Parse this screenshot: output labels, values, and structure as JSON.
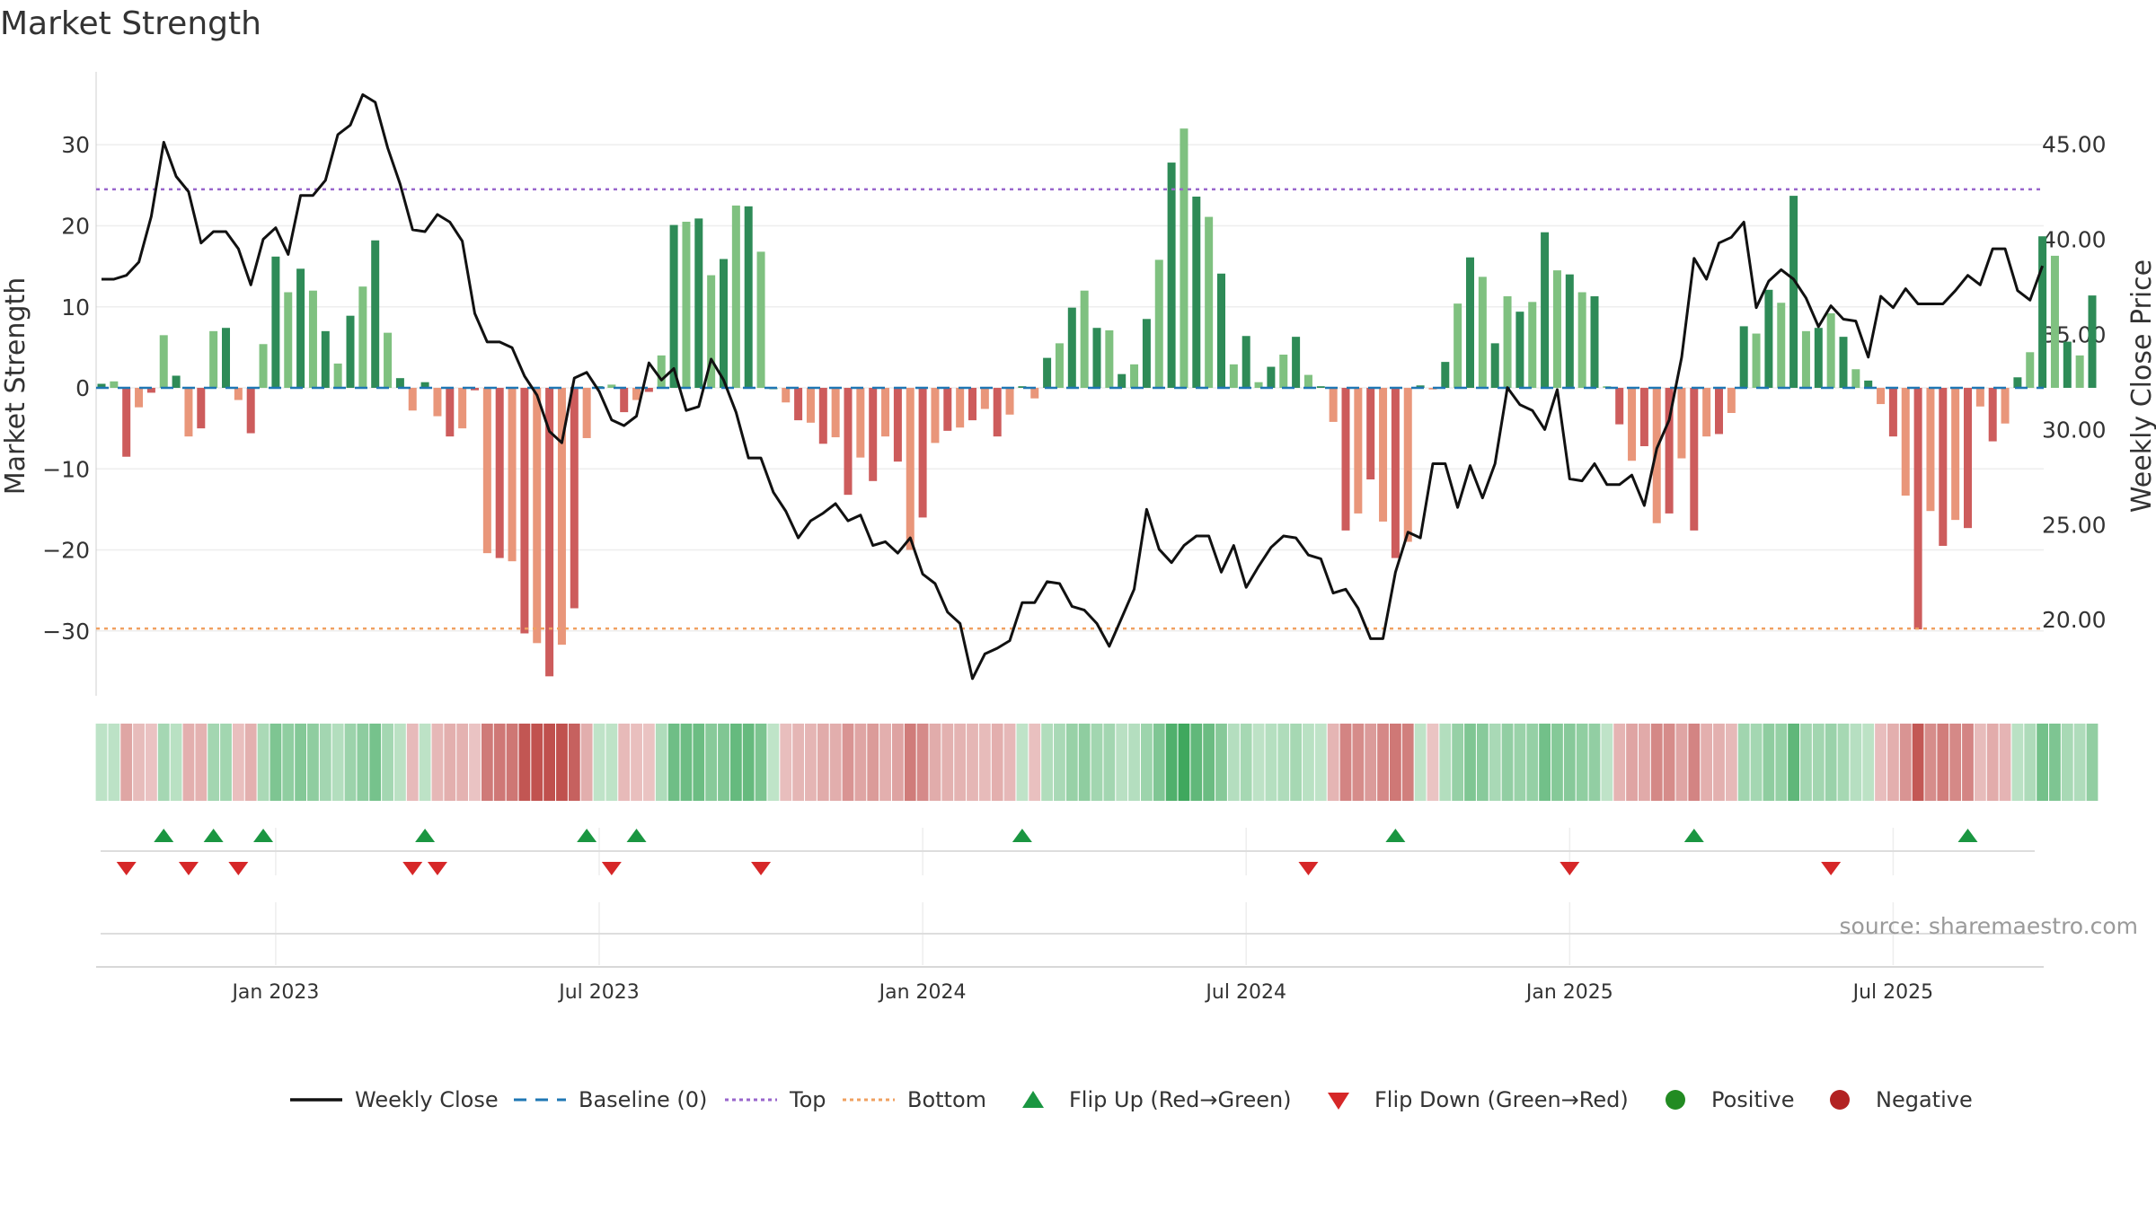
{
  "chart_data": {
    "type": "bar+line",
    "title": "Market Strength",
    "ylabel_left": "Market Strength",
    "ylabel_right": "Weekly Close Price",
    "ylim_left": [
      -38,
      39
    ],
    "ylim_right": [
      16,
      48.8
    ],
    "left_ticks": [
      30,
      20,
      10,
      0,
      -10,
      -20,
      -30
    ],
    "left_tick_labels": [
      "30",
      "20",
      "10",
      "0",
      "−10",
      "−20",
      "−30"
    ],
    "right_ticks": [
      45,
      40,
      35,
      30,
      25,
      20
    ],
    "right_tick_labels": [
      "45.00",
      "40.00",
      "35.00",
      "30.00",
      "25.00",
      "20.00"
    ],
    "top_level": 24.5,
    "bottom_level": -29.7,
    "baseline": 0,
    "date_labels": [
      {
        "label": "Jan 2023",
        "week": 14
      },
      {
        "label": "Jul 2023",
        "week": 40
      },
      {
        "label": "Jan 2024",
        "week": 66
      },
      {
        "label": "Jul 2024",
        "week": 92
      },
      {
        "label": "Jan 2025",
        "week": 118
      },
      {
        "label": "Jul 2025",
        "week": 144
      }
    ],
    "strength": [
      0.5,
      0.8,
      -8.5,
      -2.4,
      -0.6,
      6.5,
      1.5,
      -6,
      -5,
      7,
      7.4,
      -1.5,
      -5.6,
      5.4,
      16.2,
      11.8,
      14.7,
      12,
      7,
      3,
      8.9,
      12.5,
      18.2,
      6.8,
      1.2,
      -2.8,
      0.7,
      -3.5,
      -6,
      -5,
      -0.3,
      -20.4,
      -21,
      -21.4,
      -30.3,
      -31.5,
      -35.6,
      -31.7,
      -27.2,
      -6.2,
      0.2,
      0.4,
      -3,
      -1.5,
      -0.5,
      4,
      20.1,
      20.5,
      20.9,
      13.9,
      15.9,
      22.5,
      22.4,
      16.8,
      0,
      -1.8,
      -4,
      -4.3,
      -6.9,
      -6.1,
      -13.2,
      -8.6,
      -11.5,
      -6,
      -9.1,
      -20,
      -16,
      -6.8,
      -5.3,
      -4.9,
      -4,
      -2.6,
      -6,
      -3.3,
      0.2,
      -1.3,
      3.7,
      5.5,
      9.9,
      12,
      7.4,
      7.1,
      1.7,
      2.9,
      8.5,
      15.8,
      27.8,
      32,
      23.6,
      21.1,
      14.1,
      2.9,
      6.4,
      0.7,
      2.6,
      4.1,
      6.3,
      1.6,
      0.2,
      -4.2,
      -17.6,
      -15.5,
      -11.3,
      -16.5,
      -21,
      -19,
      0.3,
      -0.2,
      3.2,
      10.4,
      16.1,
      13.7,
      5.5,
      11.3,
      9.4,
      10.6,
      19.2,
      14.5,
      14,
      11.8,
      11.3,
      0.2,
      -4.5,
      -9,
      -7.2,
      -16.7,
      -15.5,
      -8.7,
      -17.6,
      -6,
      -5.7,
      -3.1,
      7.6,
      6.7,
      12.1,
      10.5,
      23.7,
      7,
      7.4,
      9.2,
      6.3,
      2.3,
      0.9,
      -2,
      -6,
      -13.3,
      -29.8,
      -15.2,
      -19.5,
      -16.3,
      -17.3,
      -2.3,
      -6.6,
      -4.4,
      1.3,
      4.4,
      18.7,
      16.3,
      5.7,
      4,
      11.4
    ],
    "close": [
      37.9,
      37.9,
      38.1,
      38.8,
      41.2,
      45.1,
      43.3,
      42.5,
      39.8,
      40.4,
      40.4,
      39.5,
      37.6,
      40,
      40.6,
      39.2,
      42.3,
      42.3,
      43.1,
      45.5,
      46,
      47.6,
      47.2,
      44.8,
      42.9,
      40.5,
      40.4,
      41.3,
      40.9,
      39.9,
      36.1,
      34.6,
      34.6,
      34.3,
      32.8,
      31.8,
      29.9,
      29.3,
      32.7,
      33,
      32,
      30.5,
      30.2,
      30.7,
      33.5,
      32.6,
      33.2,
      31,
      31.2,
      33.7,
      32.6,
      30.9,
      28.5,
      28.5,
      26.7,
      25.7,
      24.3,
      25.2,
      25.6,
      26.1,
      25.2,
      25.5,
      23.9,
      24.1,
      23.5,
      24.3,
      22.4,
      21.9,
      20.4,
      19.8,
      16.9,
      18.2,
      18.5,
      18.9,
      20.9,
      20.9,
      22,
      21.9,
      20.7,
      20.5,
      19.8,
      18.6,
      20.1,
      21.6,
      25.8,
      23.7,
      23,
      23.9,
      24.4,
      24.4,
      22.5,
      23.9,
      21.7,
      22.8,
      23.8,
      24.4,
      24.3,
      23.4,
      23.2,
      21.4,
      21.6,
      20.6,
      19,
      19,
      22.5,
      24.6,
      24.3,
      28.2,
      28.2,
      25.9,
      28.1,
      26.4,
      28.2,
      32.2,
      31.3,
      31,
      30,
      32.1,
      27.4,
      27.3,
      28.2,
      27.1,
      27.1,
      27.6,
      26,
      29,
      30.5,
      33.8,
      39,
      37.9,
      39.8,
      40.1,
      40.9,
      36.4,
      37.8,
      38.4,
      37.9,
      36.9,
      35.4,
      36.5,
      35.8,
      35.7,
      33.8,
      37,
      36.4,
      37.4,
      36.6,
      36.6,
      36.6,
      37.3,
      38.1,
      37.6,
      39.5,
      39.5,
      37.3,
      36.8,
      38.6
    ],
    "flip_up_weeks": [
      5,
      9,
      13,
      26,
      39,
      43,
      74,
      104,
      128,
      150
    ],
    "flip_down_weeks": [
      2,
      7,
      11,
      25,
      27,
      41,
      53,
      97,
      118,
      139
    ],
    "source": "source: sharemaestro.com",
    "legend": [
      "Weekly Close",
      "Baseline (0)",
      "Top",
      "Bottom",
      "Flip Up (Red→Green)",
      "Flip Down (Green→Red)",
      "Positive",
      "Negative"
    ]
  },
  "colors": {
    "pos_dark": "#2e8b57",
    "pos_light": "#7fc180",
    "neg_dark": "#cd5c5c",
    "neg_light": "#e9967a",
    "top": "#9966cc",
    "bottom": "#f0a060",
    "baseline": "#1f77b4",
    "close": "#111111",
    "flip_up": "#1a9641",
    "flip_down": "#d62728",
    "legend_pos": "#228b22",
    "legend_neg": "#b22222"
  }
}
